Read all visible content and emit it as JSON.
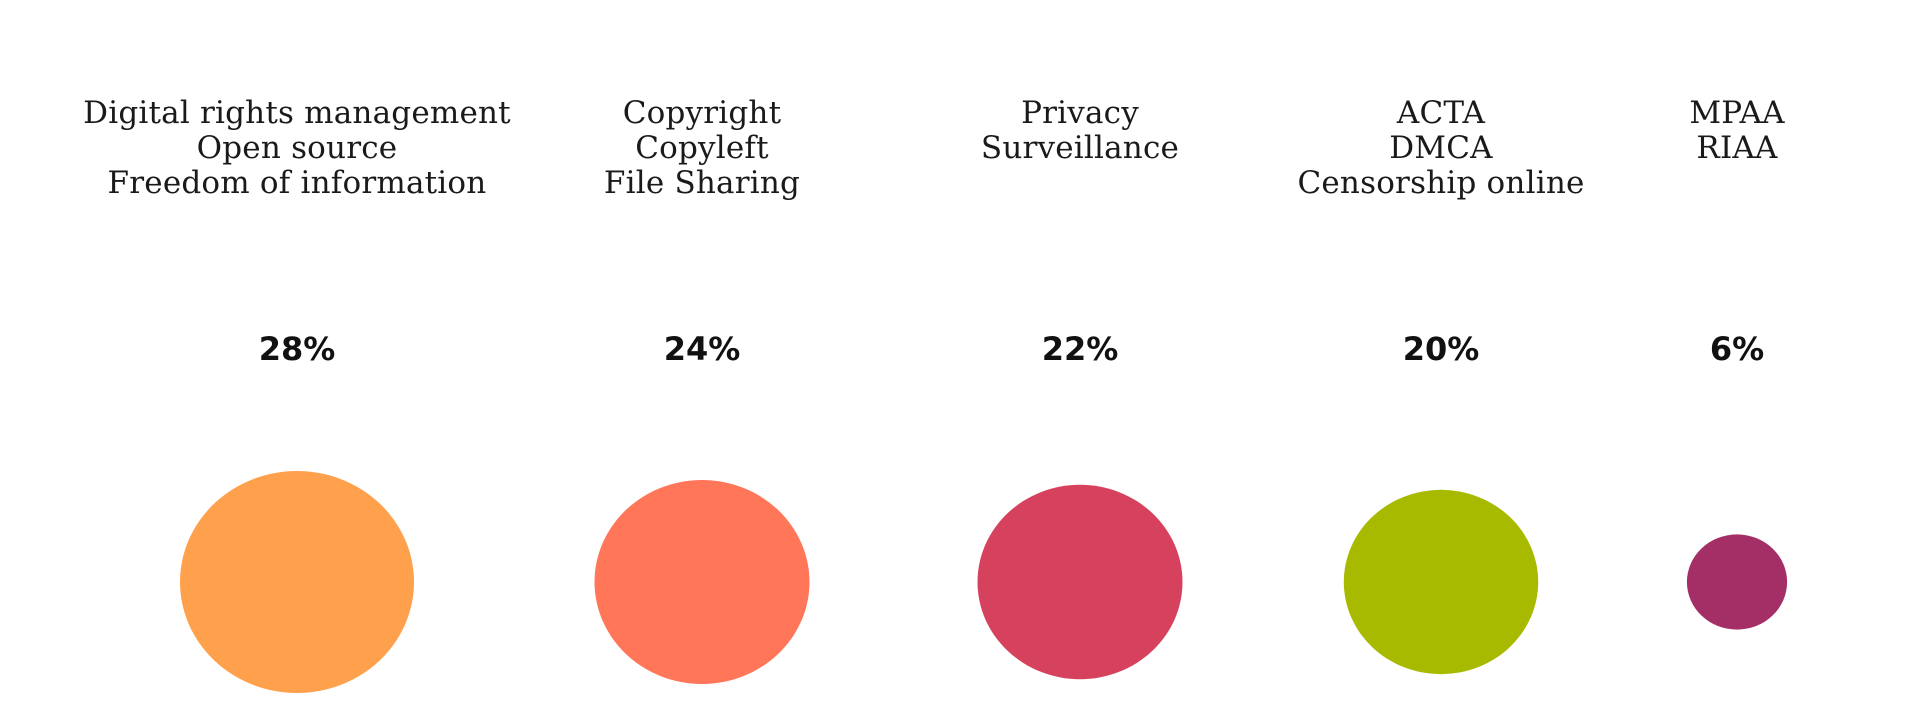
{
  "chart_data": {
    "type": "bubble",
    "title": "",
    "categories": [
      {
        "lines": [
          "Digital rights management",
          "Open source",
          "Freedom of information"
        ],
        "value": 28,
        "label": "28%",
        "color": "#FFA04C"
      },
      {
        "lines": [
          "Copyright",
          "Copyleft",
          "File Sharing"
        ],
        "value": 24,
        "label": "24%",
        "color": "#FF7659"
      },
      {
        "lines": [
          "Privacy",
          "Surveillance"
        ],
        "value": 22,
        "label": "22%",
        "color": "#D6425E"
      },
      {
        "lines": [
          "ACTA",
          "DMCA",
          "Censorship online"
        ],
        "value": 20,
        "label": "20%",
        "color": "#A8BA00"
      },
      {
        "lines": [
          "MPAA",
          "RIAA"
        ],
        "value": 6,
        "label": "6%",
        "color": "#A42F67"
      }
    ],
    "unit": "%"
  }
}
